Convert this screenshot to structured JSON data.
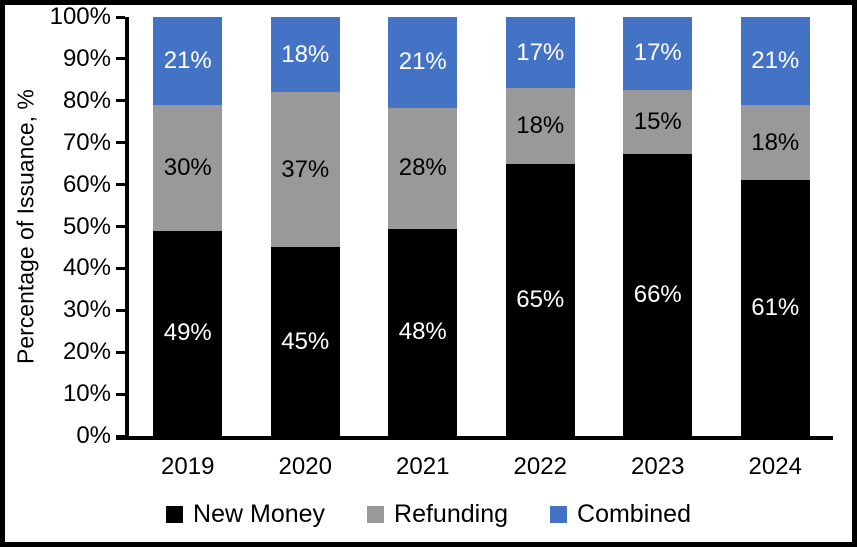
{
  "chart_data": {
    "type": "bar",
    "stacked": true,
    "title": "",
    "ylabel": "Percentage of Issuance, %",
    "xlabel": "",
    "ylim": [
      0,
      100
    ],
    "y_tick_labels": [
      "0%",
      "10%",
      "20%",
      "30%",
      "40%",
      "50%",
      "60%",
      "70%",
      "80%",
      "90%",
      "100%"
    ],
    "categories": [
      "2019",
      "2020",
      "2021",
      "2022",
      "2023",
      "2024"
    ],
    "series": [
      {
        "name": "New Money",
        "color": "#000000",
        "label_color": "#ffffff",
        "values": [
          49,
          45,
          48,
          65,
          66,
          61
        ]
      },
      {
        "name": "Refunding",
        "color": "#999999",
        "label_color": "#000000",
        "values": [
          30,
          37,
          28,
          18,
          15,
          18
        ]
      },
      {
        "name": "Combined",
        "color": "#4472C4",
        "label_color": "#ffffff",
        "values": [
          21,
          18,
          21,
          17,
          17,
          21
        ]
      }
    ],
    "data_label_suffix": "%",
    "legend_position": "bottom",
    "grid": false
  },
  "colors": {
    "axis": "#000000",
    "background": "#ffffff",
    "frame_border": "#000000"
  }
}
